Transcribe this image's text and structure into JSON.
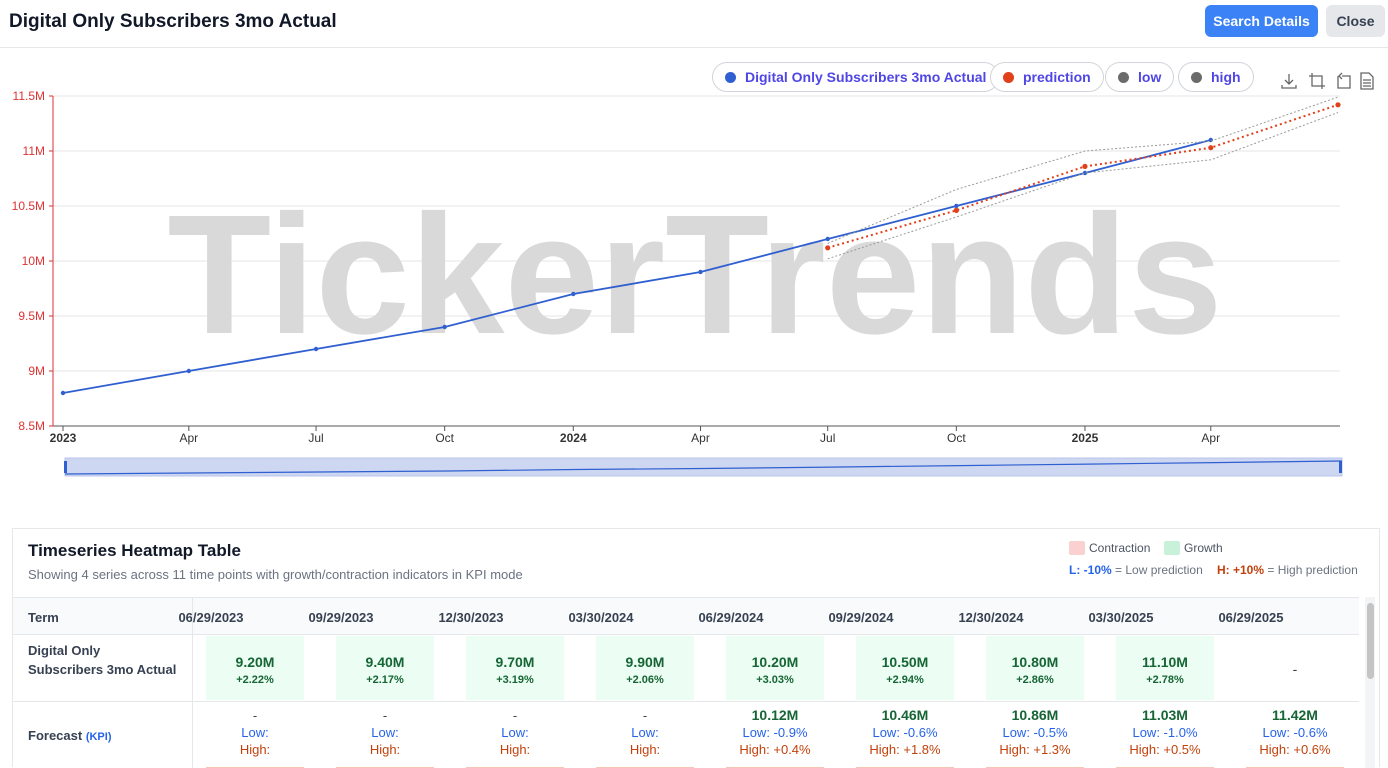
{
  "header": {
    "title": "Digital Only Subscribers 3mo Actual",
    "search_label": "Search Details",
    "close_label": "Close"
  },
  "legend": [
    {
      "label": "Digital Only Subscribers 3mo Actual",
      "color": "#2f5fd0"
    },
    {
      "label": "prediction",
      "color": "#e0401a"
    },
    {
      "label": "low",
      "color": "#6b6b6b"
    },
    {
      "label": "high",
      "color": "#6b6b6b"
    }
  ],
  "toolbar": [
    "download-icon",
    "zoom-icon",
    "reset-zoom-icon",
    "data-view-icon"
  ],
  "watermark": "TickerTrends",
  "chart_data": {
    "type": "line",
    "x_ticks": [
      "2023",
      "Apr",
      "Jul",
      "Oct",
      "2024",
      "Apr",
      "Jul",
      "Oct",
      "2025",
      "Apr"
    ],
    "y_ticks": [
      "8.5M",
      "9M",
      "9.5M",
      "10M",
      "10.5M",
      "11M",
      "11.5M"
    ],
    "ylim": [
      8.5,
      11.5
    ],
    "y_unit": "M",
    "series": [
      {
        "name": "Digital Only Subscribers 3mo Actual",
        "color": "#2f5fd0",
        "points": [
          {
            "x": "2022-12-30",
            "y": 8.8
          },
          {
            "x": "2023-03-30",
            "y": 9.0
          },
          {
            "x": "2023-06-29",
            "y": 9.2
          },
          {
            "x": "2023-09-29",
            "y": 9.4
          },
          {
            "x": "2023-12-30",
            "y": 9.7
          },
          {
            "x": "2024-03-30",
            "y": 9.9
          },
          {
            "x": "2024-06-29",
            "y": 10.2
          },
          {
            "x": "2024-09-29",
            "y": 10.5
          },
          {
            "x": "2024-12-30",
            "y": 10.8
          },
          {
            "x": "2025-03-30",
            "y": 11.1
          }
        ]
      },
      {
        "name": "prediction",
        "color": "#e0401a",
        "points": [
          {
            "x": "2024-06-29",
            "y": 10.12
          },
          {
            "x": "2024-09-29",
            "y": 10.46
          },
          {
            "x": "2024-12-30",
            "y": 10.86
          },
          {
            "x": "2025-03-30",
            "y": 11.03
          },
          {
            "x": "2025-06-29",
            "y": 11.42
          }
        ]
      },
      {
        "name": "low",
        "color": "#9a9a9a",
        "points": [
          {
            "x": "2024-06-29",
            "y": 10.02
          },
          {
            "x": "2024-09-29",
            "y": 10.4
          },
          {
            "x": "2024-12-30",
            "y": 10.8
          },
          {
            "x": "2025-03-30",
            "y": 10.92
          },
          {
            "x": "2025-06-29",
            "y": 11.35
          }
        ]
      },
      {
        "name": "high",
        "color": "#9a9a9a",
        "points": [
          {
            "x": "2024-06-29",
            "y": 10.16
          },
          {
            "x": "2024-09-29",
            "y": 10.65
          },
          {
            "x": "2024-12-30",
            "y": 11.0
          },
          {
            "x": "2025-03-30",
            "y": 11.09
          },
          {
            "x": "2025-06-29",
            "y": 11.49
          }
        ]
      }
    ]
  },
  "heatmap": {
    "title": "Timeseries Heatmap Table",
    "subtitle": "Showing 4 series across 11 time points with growth/contraction indicators in KPI mode",
    "legend_contraction": "Contraction",
    "legend_growth": "Growth",
    "note_low_tag": "L: -10%",
    "note_low_text": "= Low prediction",
    "note_high_tag": "H: +10%",
    "note_high_text": "= High prediction",
    "term_header": "Term",
    "columns": [
      "06/29/2023",
      "09/29/2023",
      "12/30/2023",
      "03/30/2024",
      "06/29/2024",
      "09/29/2024",
      "12/30/2024",
      "03/30/2025",
      "06/29/2025"
    ],
    "row1_label": "Digital Only Subscribers 3mo Actual",
    "row1": [
      {
        "value": "9.20M",
        "pct": "+2.22%"
      },
      {
        "value": "9.40M",
        "pct": "+2.17%"
      },
      {
        "value": "9.70M",
        "pct": "+3.19%"
      },
      {
        "value": "9.90M",
        "pct": "+2.06%"
      },
      {
        "value": "10.20M",
        "pct": "+3.03%"
      },
      {
        "value": "10.50M",
        "pct": "+2.94%"
      },
      {
        "value": "10.80M",
        "pct": "+2.86%"
      },
      {
        "value": "11.10M",
        "pct": "+2.78%"
      },
      {
        "value": "-",
        "pct": ""
      }
    ],
    "row2_label": "Forecast",
    "row2_tag": "(KPI)",
    "row2": [
      {
        "value": "-",
        "low": "Low:",
        "high": "High:"
      },
      {
        "value": "-",
        "low": "Low:",
        "high": "High:"
      },
      {
        "value": "-",
        "low": "Low:",
        "high": "High:"
      },
      {
        "value": "-",
        "low": "Low:",
        "high": "High:"
      },
      {
        "value": "10.12M",
        "low": "Low: -0.9%",
        "high": "High: +0.4%"
      },
      {
        "value": "10.46M",
        "low": "Low: -0.6%",
        "high": "High: +1.8%"
      },
      {
        "value": "10.86M",
        "low": "Low: -0.5%",
        "high": "High: +1.3%"
      },
      {
        "value": "11.03M",
        "low": "Low: -1.0%",
        "high": "High: +0.5%"
      },
      {
        "value": "11.42M",
        "low": "Low: -0.6%",
        "high": "High: +0.6%"
      }
    ]
  }
}
